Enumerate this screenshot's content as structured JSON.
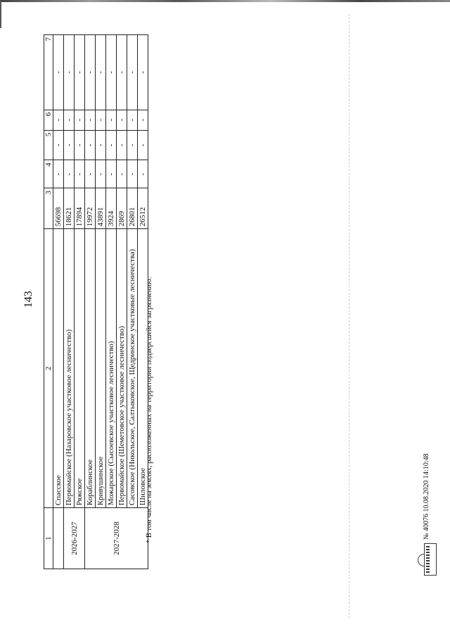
{
  "page_number": "143",
  "table": {
    "headers": [
      "1",
      "2",
      "3",
      "4",
      "5",
      "6",
      "7"
    ],
    "groups": [
      {
        "period": "",
        "rows": [
          {
            "name": "Спасское",
            "c3": "56698",
            "c4": "-",
            "c5": "-",
            "c6": "-",
            "c7": "-"
          }
        ]
      },
      {
        "period": "2026-2027",
        "rows": [
          {
            "name": "Первомайское (Назаровское участковое лесничество)",
            "c3": "18621",
            "c4": "-",
            "c5": "-",
            "c6": "-",
            "c7": "-"
          },
          {
            "name": "Ряжское",
            "c3": "17894",
            "c4": "-",
            "c5": "-",
            "c6": "-",
            "c7": "-"
          }
        ]
      },
      {
        "period": "2027-2028",
        "rows": [
          {
            "name": "Кораблинское",
            "c3": "19972",
            "c4": "-",
            "c5": "-",
            "c6": "-",
            "c7": "-"
          },
          {
            "name": "Кривушинское",
            "c3": "43891",
            "c4": "-",
            "c5": "-",
            "c6": "-",
            "c7": "-"
          },
          {
            "name": "Можарское (Сысоевское участковое лесничество)",
            "c3": "3924",
            "c4": "-",
            "c5": "-",
            "c6": "-",
            "c7": "-"
          },
          {
            "name": "Первомайское (Шеметовское участковое лесничество)",
            "c3": "2869",
            "c4": "-",
            "c5": "-",
            "c6": "-",
            "c7": "-"
          },
          {
            "name": "Сасовское (Никольское, Салтыковское, Щедринское участковые лесничества)",
            "c3": "26801",
            "c4": "-",
            "c5": "-",
            "c6": "-",
            "c7": "-"
          },
          {
            "name": "Шиловское",
            "c3": "26512",
            "c4": "-",
            "c5": "-",
            "c6": "-",
            "c7": "-"
          }
        ]
      }
    ]
  },
  "footnote": "* В том числе на землях, расположенных на территории подвергшейся загрязнению.",
  "stamp": "№ 40076  10.08.2020 14:10:48"
}
